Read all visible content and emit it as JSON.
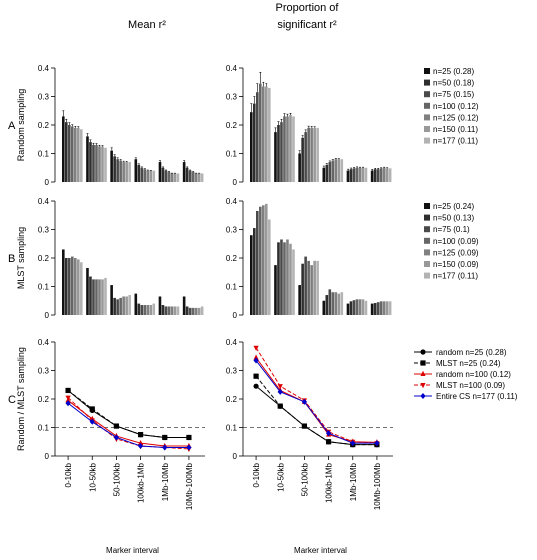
{
  "figure": {
    "column_titles": [
      "Mean r²",
      "Proportion of\nsignificant r²"
    ],
    "row_letters": [
      "A",
      "B",
      "C"
    ],
    "row_ylabels": [
      "Random sampling",
      "MLST sampling",
      "Random / MLST sampling"
    ],
    "xlabel": "Marker interval"
  },
  "chart_data": [
    {
      "id": "A-mean",
      "type": "bar",
      "title": "Mean r²",
      "ylabel": "Random sampling",
      "ylim": [
        0,
        0.4
      ],
      "yticks": [
        0,
        0.1,
        0.2,
        0.3,
        0.4
      ],
      "categories": [
        "0-10kb",
        "10-50kb",
        "50-100kb",
        "100kb-1Mb",
        "1Mb-10Mb",
        "10Mb-100Mb"
      ],
      "series": [
        {
          "name": "n=25 (0.28)",
          "values": [
            0.23,
            0.16,
            0.11,
            0.08,
            0.07,
            0.07
          ]
        },
        {
          "name": "n=50 (0.18)",
          "values": [
            0.21,
            0.14,
            0.09,
            0.06,
            0.05,
            0.05
          ]
        },
        {
          "name": "n=75 (0.15)",
          "values": [
            0.2,
            0.13,
            0.08,
            0.05,
            0.04,
            0.04
          ]
        },
        {
          "name": "n=100 (0.12)",
          "values": [
            0.195,
            0.13,
            0.075,
            0.045,
            0.035,
            0.035
          ]
        },
        {
          "name": "n=125 (0.12)",
          "values": [
            0.19,
            0.125,
            0.07,
            0.04,
            0.03,
            0.03
          ]
        },
        {
          "name": "n=150 (0.11)",
          "values": [
            0.19,
            0.125,
            0.07,
            0.04,
            0.03,
            0.03
          ]
        },
        {
          "name": "n=177 (0.11)",
          "values": [
            0.185,
            0.12,
            0.07,
            0.04,
            0.03,
            0.03
          ]
        }
      ],
      "errors": [
        [
          0.02,
          0.01,
          0.01,
          0.005,
          0.005,
          0.005
        ],
        [
          0.01,
          0.008,
          0.006,
          0.004,
          0.003,
          0.003
        ],
        [
          0.008,
          0.006,
          0.005,
          0.003,
          0.002,
          0.002
        ],
        [
          0.006,
          0.005,
          0.004,
          0.002,
          0.002,
          0.002
        ],
        [
          0.005,
          0.004,
          0.003,
          0.002,
          0.001,
          0.001
        ],
        [
          0.004,
          0.003,
          0.002,
          0.001,
          0.001,
          0.001
        ],
        [
          0,
          0,
          0,
          0,
          0,
          0
        ]
      ]
    },
    {
      "id": "A-prop",
      "type": "bar",
      "title": "Proportion of significant r²",
      "ylim": [
        0,
        0.4
      ],
      "yticks": [
        0,
        0.1,
        0.2,
        0.3,
        0.4
      ],
      "categories": [
        "0-10kb",
        "10-50kb",
        "50-100kb",
        "100kb-1Mb",
        "1Mb-10Mb",
        "10Mb-100Mb"
      ],
      "series": [
        {
          "name": "n=25 (0.28)",
          "values": [
            0.245,
            0.175,
            0.1,
            0.05,
            0.04,
            0.04
          ]
        },
        {
          "name": "n=50 (0.18)",
          "values": [
            0.275,
            0.2,
            0.155,
            0.06,
            0.045,
            0.045
          ]
        },
        {
          "name": "n=75 (0.15)",
          "values": [
            0.315,
            0.21,
            0.175,
            0.07,
            0.048,
            0.045
          ]
        },
        {
          "name": "n=100 (0.12)",
          "values": [
            0.345,
            0.23,
            0.19,
            0.075,
            0.05,
            0.048
          ]
        },
        {
          "name": "n=125 (0.12)",
          "values": [
            0.335,
            0.23,
            0.19,
            0.08,
            0.05,
            0.05
          ]
        },
        {
          "name": "n=150 (0.11)",
          "values": [
            0.335,
            0.235,
            0.19,
            0.08,
            0.05,
            0.048
          ]
        },
        {
          "name": "n=177 (0.11)",
          "values": [
            0.33,
            0.23,
            0.19,
            0.08,
            0.05,
            0.048
          ]
        }
      ],
      "errors": [
        [
          0.03,
          0.015,
          0.01,
          0.006,
          0.005,
          0.004
        ],
        [
          0.025,
          0.012,
          0.008,
          0.005,
          0.004,
          0.003
        ],
        [
          0.03,
          0.01,
          0.008,
          0.004,
          0.003,
          0.003
        ],
        [
          0.04,
          0.01,
          0.006,
          0.004,
          0.003,
          0.002
        ],
        [
          0.015,
          0.008,
          0.005,
          0.003,
          0.002,
          0.002
        ],
        [
          0.01,
          0.006,
          0.004,
          0.002,
          0.002,
          0.002
        ],
        [
          0,
          0,
          0,
          0,
          0,
          0
        ]
      ]
    },
    {
      "id": "B-mean",
      "type": "bar",
      "ylabel": "MLST sampling",
      "ylim": [
        0,
        0.4
      ],
      "yticks": [
        0,
        0.1,
        0.2,
        0.3,
        0.4
      ],
      "categories": [
        "0-10kb",
        "10-50kb",
        "50-100kb",
        "100kb-1Mb",
        "1Mb-10Mb",
        "10Mb-100Mb"
      ],
      "series": [
        {
          "name": "n=25 (0.24)",
          "values": [
            0.23,
            0.165,
            0.105,
            0.075,
            0.065,
            0.065
          ]
        },
        {
          "name": "n=50 (0.13)",
          "values": [
            0.2,
            0.135,
            0.06,
            0.04,
            0.035,
            0.03
          ]
        },
        {
          "name": "n=75 (0.1)",
          "values": [
            0.2,
            0.125,
            0.055,
            0.035,
            0.03,
            0.025
          ]
        },
        {
          "name": "n=100 (0.09)",
          "values": [
            0.205,
            0.125,
            0.06,
            0.035,
            0.03,
            0.025
          ]
        },
        {
          "name": "n=125 (0.09)",
          "values": [
            0.2,
            0.125,
            0.065,
            0.035,
            0.03,
            0.025
          ]
        },
        {
          "name": "n=150 (0.09)",
          "values": [
            0.195,
            0.125,
            0.065,
            0.035,
            0.03,
            0.025
          ]
        },
        {
          "name": "n=177 (0.11)",
          "values": [
            0.185,
            0.13,
            0.07,
            0.04,
            0.03,
            0.03
          ]
        }
      ]
    },
    {
      "id": "B-prop",
      "type": "bar",
      "ylim": [
        0,
        0.4
      ],
      "yticks": [
        0,
        0.1,
        0.2,
        0.3,
        0.4
      ],
      "categories": [
        "0-10kb",
        "10-50kb",
        "50-100kb",
        "100kb-1Mb",
        "1Mb-10Mb",
        "10Mb-100Mb"
      ],
      "series": [
        {
          "name": "n=25 (0.24)",
          "values": [
            0.28,
            0.175,
            0.105,
            0.05,
            0.04,
            0.04
          ]
        },
        {
          "name": "n=50 (0.13)",
          "values": [
            0.305,
            0.255,
            0.18,
            0.07,
            0.048,
            0.042
          ]
        },
        {
          "name": "n=75 (0.1)",
          "values": [
            0.365,
            0.265,
            0.205,
            0.09,
            0.052,
            0.045
          ]
        },
        {
          "name": "n=100 (0.09)",
          "values": [
            0.38,
            0.255,
            0.19,
            0.08,
            0.055,
            0.048
          ]
        },
        {
          "name": "n=125 (0.09)",
          "values": [
            0.385,
            0.265,
            0.175,
            0.08,
            0.055,
            0.048
          ]
        },
        {
          "name": "n=150 (0.09)",
          "values": [
            0.39,
            0.25,
            0.19,
            0.075,
            0.055,
            0.048
          ]
        },
        {
          "name": "n=177 (0.11)",
          "values": [
            0.335,
            0.23,
            0.19,
            0.08,
            0.05,
            0.048
          ]
        }
      ]
    },
    {
      "id": "C-mean",
      "type": "line",
      "ylabel": "Random / MLST sampling",
      "xlabel": "Marker interval",
      "ylim": [
        0,
        0.4
      ],
      "yticks": [
        0,
        0.1,
        0.2,
        0.3,
        0.4
      ],
      "categories": [
        "0-10kb",
        "10-50kb",
        "50-100kb",
        "100kb-1Mb",
        "1Mb-10Mb",
        "10Mb-100Mb"
      ],
      "reference_line": 0.1,
      "series": [
        {
          "name": "random n=25 (0.28)",
          "values": [
            0.23,
            0.16,
            0.105,
            0.075,
            0.065,
            0.065
          ],
          "color": "#000000",
          "dash": "solid",
          "marker": "circle"
        },
        {
          "name": "MLST n=25 (0.24)",
          "values": [
            0.23,
            0.165,
            0.105,
            0.075,
            0.065,
            0.065
          ],
          "color": "#000000",
          "dash": "dashed",
          "marker": "square"
        },
        {
          "name": "random n=100 (0.12)",
          "values": [
            0.195,
            0.13,
            0.07,
            0.045,
            0.035,
            0.035
          ],
          "color": "#dd0000",
          "dash": "solid",
          "marker": "triangle-up"
        },
        {
          "name": "MLST n=100 (0.09)",
          "values": [
            0.205,
            0.125,
            0.06,
            0.035,
            0.03,
            0.025
          ],
          "color": "#dd0000",
          "dash": "dashed",
          "marker": "triangle-down"
        },
        {
          "name": "Entire CS n=177 (0.11)",
          "values": [
            0.185,
            0.12,
            0.065,
            0.035,
            0.03,
            0.03
          ],
          "color": "#0000cc",
          "dash": "solid",
          "marker": "diamond"
        }
      ]
    },
    {
      "id": "C-prop",
      "type": "line",
      "xlabel": "Marker interval",
      "ylim": [
        0,
        0.4
      ],
      "yticks": [
        0,
        0.1,
        0.2,
        0.3,
        0.4
      ],
      "categories": [
        "0-10kb",
        "10-50kb",
        "50-100kb",
        "100kb-1Mb",
        "1Mb-10Mb",
        "10Mb-100Mb"
      ],
      "reference_line": 0.1,
      "series": [
        {
          "name": "random n=25 (0.28)",
          "values": [
            0.245,
            0.175,
            0.105,
            0.05,
            0.04,
            0.04
          ],
          "color": "#000000",
          "dash": "solid",
          "marker": "circle"
        },
        {
          "name": "MLST n=25 (0.24)",
          "values": [
            0.28,
            0.175,
            0.105,
            0.05,
            0.04,
            0.04
          ],
          "color": "#000000",
          "dash": "dashed",
          "marker": "square"
        },
        {
          "name": "random n=100 (0.12)",
          "values": [
            0.345,
            0.23,
            0.19,
            0.075,
            0.05,
            0.048
          ],
          "color": "#dd0000",
          "dash": "solid",
          "marker": "triangle-up"
        },
        {
          "name": "MLST n=100 (0.09)",
          "values": [
            0.38,
            0.245,
            0.195,
            0.085,
            0.05,
            0.045
          ],
          "color": "#dd0000",
          "dash": "dashed",
          "marker": "triangle-down"
        },
        {
          "name": "Entire CS n=177 (0.11)",
          "values": [
            0.335,
            0.225,
            0.19,
            0.08,
            0.045,
            0.045
          ],
          "color": "#0000cc",
          "dash": "solid",
          "marker": "diamond"
        }
      ]
    }
  ],
  "bar_colors": [
    "#111111",
    "#2e2e2e",
    "#4a4a4a",
    "#666666",
    "#808080",
    "#999999",
    "#b3b3b3"
  ]
}
